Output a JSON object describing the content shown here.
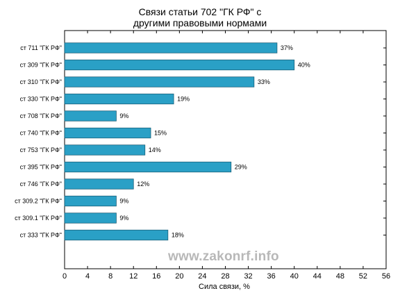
{
  "chart_data": {
    "type": "bar",
    "orientation": "horizontal",
    "title_line1": "Связи статьи 702 \"ГК РФ\" с",
    "title_line2": "другими правовыми нормами",
    "xlabel": "Сила связи, %",
    "ylabel": "",
    "xlim": [
      0,
      56
    ],
    "x_ticks": [
      0,
      4,
      8,
      12,
      16,
      20,
      24,
      28,
      32,
      36,
      40,
      44,
      48,
      52,
      56
    ],
    "categories": [
      "ст 711 \"ГК РФ\"",
      "ст 309 \"ГК РФ\"",
      "ст 310 \"ГК РФ\"",
      "ст 330 \"ГК РФ\"",
      "ст 708 \"ГК РФ\"",
      "ст 740 \"ГК РФ\"",
      "ст 753 \"ГК РФ\"",
      "ст 395 \"ГК РФ\"",
      "ст 746 \"ГК РФ\"",
      "ст 309.2 \"ГК РФ\"",
      "ст 309.1 \"ГК РФ\"",
      "ст 333 \"ГК РФ\""
    ],
    "values": [
      37,
      40,
      33,
      19,
      9,
      15,
      14,
      29,
      12,
      9,
      9,
      18
    ],
    "value_labels": [
      "37%",
      "40%",
      "33%",
      "19%",
      "9%",
      "15%",
      "14%",
      "29%",
      "12%",
      "9%",
      "9%",
      "18%"
    ],
    "bar_color": "#2aa0c6",
    "grid": false
  },
  "watermark": "www.zakonrf.info"
}
